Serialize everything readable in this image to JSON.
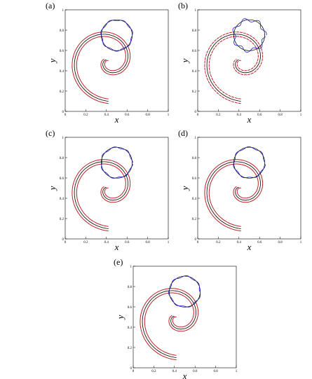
{
  "panels": [
    {
      "label": "(a)",
      "xlabel": "x",
      "ylabel": "y",
      "xticks": [
        0,
        0.2,
        0.4,
        0.6,
        0.8,
        1
      ],
      "yticks": [
        0,
        0.2,
        0.4,
        0.6,
        0.8,
        1
      ]
    },
    {
      "label": "(b)",
      "xlabel": "x",
      "ylabel": "y",
      "xticks": [
        0,
        0.2,
        0.4,
        0.6,
        0.8,
        1
      ],
      "yticks": [
        0,
        0.2,
        0.4,
        0.6,
        0.8,
        1
      ]
    },
    {
      "label": "(c)",
      "xlabel": "x",
      "ylabel": "y",
      "xticks": [
        0,
        0.2,
        0.4,
        0.6,
        0.8,
        1
      ],
      "yticks": [
        0,
        0.2,
        0.4,
        0.6,
        0.8,
        1
      ]
    },
    {
      "label": "(d)",
      "xlabel": "x",
      "ylabel": "y",
      "xticks": [
        0,
        0.2,
        0.4,
        0.6,
        0.8,
        1
      ],
      "yticks": [
        0,
        0.2,
        0.4,
        0.6,
        0.8,
        1
      ]
    },
    {
      "label": "(e)",
      "xlabel": "x",
      "ylabel": "y",
      "xticks": [
        0,
        0.2,
        0.4,
        0.6,
        0.8,
        1
      ],
      "yticks": [
        0,
        0.2,
        0.4,
        0.6,
        0.8,
        1
      ]
    }
  ]
}
